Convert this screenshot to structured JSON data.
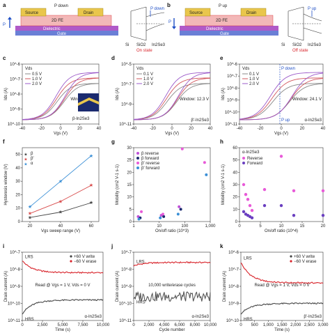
{
  "panels": {
    "a": {
      "letter": "a",
      "polarization": "P down",
      "source": "Source",
      "drain": "Drain",
      "fe": "2D FE",
      "dielectric": "Dielectric",
      "gate": "Gate",
      "p": "P",
      "band_label": "P down",
      "si": "Si",
      "sio2": "SiO2",
      "in2se3": "In2Se3",
      "state": "On state"
    },
    "b": {
      "letter": "b",
      "polarization": "P up",
      "source": "Source",
      "drain": "Drain",
      "fe": "2D FE",
      "dielectric": "Dielectric",
      "gate": "Gate",
      "p": "P",
      "band_label": "P up",
      "si": "Si",
      "sio2": "SiO2",
      "in2se3": "In2Se3",
      "state": "Off state"
    },
    "c": {
      "material": "β-In2Se3"
    }
  },
  "chart_data": [
    {
      "id": "c",
      "type": "line",
      "xlabel": "Vgs (V)",
      "ylabel": "Ids (A)",
      "xlim": [
        -40,
        40
      ],
      "ylim_log": [
        -10,
        -6
      ],
      "xticks": [
        -40,
        -20,
        0,
        20,
        40
      ],
      "ytick_labels": [
        "10^-10",
        "10^-9",
        "10^-8",
        "10^-7",
        "10^-6"
      ],
      "legend_title": "Vds",
      "annotation": "Window: 6.9 V",
      "series": [
        {
          "name": "0.5 V",
          "color": "#8a8a8a",
          "amp": 1.0
        },
        {
          "name": "1.0 V",
          "color": "#d2575e",
          "amp": 1.15
        },
        {
          "name": "2.0 V",
          "color": "#9b59c9",
          "amp": 1.3
        }
      ]
    },
    {
      "id": "d",
      "type": "line",
      "xlabel": "Vgs (V)",
      "ylabel": "Ids (A)",
      "xlim": [
        -40,
        40
      ],
      "ylim_log": [
        -11,
        -5
      ],
      "xticks": [
        -40,
        -20,
        0,
        20,
        40
      ],
      "ytick_labels": [
        "10^-11",
        "10^-9",
        "10^-7",
        "10^-5"
      ],
      "legend_title": "Vds",
      "annotation": "Window: 12.3 V",
      "material": "β′-In2Se3",
      "series": [
        {
          "name": "0.1 V",
          "color": "#8a8a8a",
          "amp": 1.0
        },
        {
          "name": "1.0 V",
          "color": "#d2575e",
          "amp": 1.15
        },
        {
          "name": "2.0 V",
          "color": "#9b59c9",
          "amp": 1.3
        }
      ]
    },
    {
      "id": "e",
      "type": "line",
      "xlabel": "Vgs (V)",
      "ylabel": "Ids (A)",
      "xlim": [
        -40,
        40
      ],
      "ylim_log": [
        -11,
        -6
      ],
      "xticks": [
        -40,
        -20,
        0,
        20,
        40
      ],
      "ytick_labels": [
        "10^-11",
        "10^-10",
        "10^-9",
        "10^-8",
        "10^-7",
        "10^-6"
      ],
      "legend_title": "Vds",
      "annotation": "Window: 24.1 V",
      "material": "α-In2Se3",
      "markers": [
        "P down",
        "P up"
      ],
      "series": [
        {
          "name": "0.1 V",
          "color": "#8a8a8a",
          "amp": 1.0
        },
        {
          "name": "1.0 V",
          "color": "#d2575e",
          "amp": 1.15
        },
        {
          "name": "2.0 V",
          "color": "#9b59c9",
          "amp": 1.3
        }
      ]
    },
    {
      "id": "f",
      "type": "line",
      "xlabel": "Vgs sweep range (V)",
      "ylabel": "Hysteresis window (V)",
      "xlim": [
        15,
        65
      ],
      "ylim": [
        0,
        55
      ],
      "xticks": [
        20,
        40,
        60
      ],
      "yticks": [
        0,
        10,
        20,
        30,
        40,
        50
      ],
      "x": [
        20,
        40,
        60
      ],
      "series": [
        {
          "name": "β",
          "color": "#444444",
          "values": [
            3,
            7,
            14
          ]
        },
        {
          "name": "β′",
          "color": "#d84a4a",
          "values": [
            6,
            15,
            27
          ]
        },
        {
          "name": "α",
          "color": "#3a8fd6",
          "values": [
            11,
            30,
            49
          ]
        }
      ]
    },
    {
      "id": "g",
      "type": "scatter",
      "xlabel": "On/off ratio (10^3)",
      "ylabel": "Mobility (cm2 V-1 s-1)",
      "xscale": "log",
      "xlim_log": [
        0,
        3
      ],
      "ylim": [
        0,
        30
      ],
      "xtick_labels": [
        "1",
        "10",
        "100",
        "1,000"
      ],
      "yticks": [
        0,
        5,
        10,
        15,
        20,
        25,
        30
      ],
      "series": [
        {
          "name": "β reverse",
          "color": "#c050d8",
          "x": [
            1.5,
            12,
            60
          ],
          "values": [
            2,
            2.5,
            6
          ]
        },
        {
          "name": "β forward",
          "color": "#1b2a6e",
          "x": [
            1.8,
            15,
            70
          ],
          "values": [
            1.5,
            2,
            5
          ]
        },
        {
          "name": "β′ reverse",
          "color": "#e85ad8",
          "x": [
            2,
            14,
            80,
            600
          ],
          "values": [
            4,
            3,
            29.5,
            24
          ]
        },
        {
          "name": "β′ forward",
          "color": "#3a8fd6",
          "x": [
            1.6,
            11,
            55,
            700
          ],
          "values": [
            1,
            1.5,
            3,
            19
          ]
        }
      ]
    },
    {
      "id": "h",
      "type": "scatter",
      "xlabel": "On/off ratio (10^4)",
      "ylabel": "Mobility (cm2 V-1 s-1)",
      "xlim": [
        0,
        20
      ],
      "ylim": [
        0,
        60
      ],
      "xticks": [
        0,
        5,
        10,
        15,
        20
      ],
      "yticks": [
        0,
        10,
        20,
        30,
        40,
        50,
        60
      ],
      "legend_title": "α-In2Se3",
      "series": [
        {
          "name": "Reverse",
          "color": "#e85ad8",
          "x": [
            1,
            1.5,
            2,
            2.5,
            3,
            6,
            10,
            13,
            20
          ],
          "values": [
            30,
            22,
            18,
            13,
            9,
            26,
            53,
            25,
            25
          ]
        },
        {
          "name": "Forward",
          "color": "#6a3fc0",
          "x": [
            1,
            1.5,
            2,
            2.5,
            3,
            6,
            10,
            13,
            20
          ],
          "values": [
            8,
            6,
            5,
            4,
            3,
            13,
            13,
            5,
            5
          ]
        }
      ]
    },
    {
      "id": "i",
      "type": "line",
      "xlabel": "Time (s)",
      "ylabel": "Drain current (A)",
      "xlim": [
        0,
        10000
      ],
      "ylim_log": [
        -11,
        -7
      ],
      "xtick_labels": [
        "0",
        "2,500",
        "5,000",
        "7,500",
        "10,000"
      ],
      "ytick_labels": [
        "10^-11",
        "10^-10",
        "10^-9",
        "10^-8",
        "10^-7"
      ],
      "legend": [
        "+60 V write",
        "−60 V erase"
      ],
      "annotation": "Read @ Vgs = 1 V, Vds = 0 V",
      "labels": [
        "LRS",
        "HRS"
      ],
      "material": "α-In2Se3",
      "series": [
        {
          "name": "LRS",
          "color": "#d8232a",
          "start": -7.5,
          "end": -8.2
        },
        {
          "name": "HRS",
          "color": "#444444",
          "start": -10.6,
          "end": -9.8
        }
      ]
    },
    {
      "id": "j",
      "type": "line",
      "xlabel": "Cycle number",
      "ylabel": "Drain current (A)",
      "xlim": [
        0,
        10000
      ],
      "ylim_log": [
        -11,
        -7
      ],
      "xtick_labels": [
        "0",
        "2,000",
        "4,000",
        "6,000",
        "8,000",
        "10,000"
      ],
      "ytick_labels": [
        "10^-11",
        "10^-10",
        "10^-9",
        "10^-8",
        "10^-7"
      ],
      "annotation": "10,000 write/erase cycles",
      "labels": [
        "LRS",
        "HRS"
      ],
      "material": "α-In2Se3",
      "series": [
        {
          "name": "LRS",
          "color": "#d8232a",
          "start": -7.8,
          "end": -7.6
        },
        {
          "name": "HRS",
          "color": "#555555",
          "start": -9.6,
          "end": -9.6
        }
      ]
    },
    {
      "id": "k",
      "type": "line",
      "xlabel": "Time (s)",
      "ylabel": "Drain current (A)",
      "xlim": [
        0,
        3000
      ],
      "ylim_log": [
        -10,
        -6
      ],
      "xtick_labels": [
        "0",
        "500",
        "1,000",
        "1,500",
        "2,000",
        "2,500",
        "3,000"
      ],
      "ytick_labels": [
        "10^-10",
        "10^-9",
        "10^-8",
        "10^-7",
        "10^-6"
      ],
      "legend": [
        "+60 V write",
        "−60 V erase"
      ],
      "annotation": "Read @ Vgs = 1 V, Vds = 0 V",
      "labels": [
        "LRS",
        "HRS"
      ],
      "material": "β′-In2Se3",
      "series": [
        {
          "name": "LRS",
          "color": "#d8232a",
          "start": -6.6,
          "end": -7.8
        },
        {
          "name": "HRS",
          "color": "#444444",
          "start": -9.6,
          "end": -9.0
        }
      ]
    }
  ]
}
